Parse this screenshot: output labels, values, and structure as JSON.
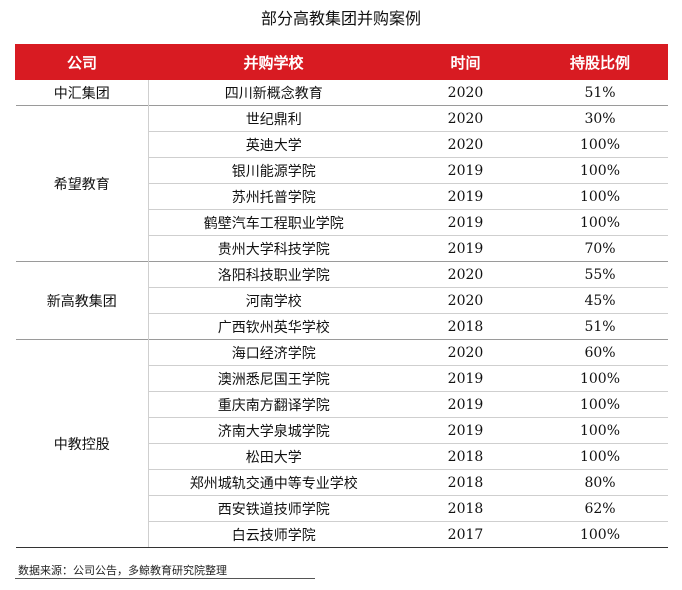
{
  "title": "部分高教集团并购案例",
  "headers": [
    "公司",
    "并购学校",
    "时间",
    "持股比例"
  ],
  "groups": [
    {
      "company": "中汇集团",
      "rows": [
        {
          "school": "四川新概念教育",
          "year": "2020",
          "share": "51%"
        }
      ]
    },
    {
      "company": "希望教育",
      "rows": [
        {
          "school": "世纪鼎利",
          "year": "2020",
          "share": "30%"
        },
        {
          "school": "英迪大学",
          "year": "2020",
          "share": "100%"
        },
        {
          "school": "银川能源学院",
          "year": "2019",
          "share": "100%"
        },
        {
          "school": "苏州托普学院",
          "year": "2019",
          "share": "100%"
        },
        {
          "school": "鹤壁汽车工程职业学院",
          "year": "2019",
          "share": "100%"
        },
        {
          "school": "贵州大学科技学院",
          "year": "2019",
          "share": "70%"
        }
      ]
    },
    {
      "company": "新高教集团",
      "rows": [
        {
          "school": "洛阳科技职业学院",
          "year": "2020",
          "share": "55%"
        },
        {
          "school": "河南学校",
          "year": "2020",
          "share": "45%"
        },
        {
          "school": "广西钦州英华学校",
          "year": "2018",
          "share": "51%"
        }
      ]
    },
    {
      "company": "中教控股",
      "rows": [
        {
          "school": "海口经济学院",
          "year": "2020",
          "share": "60%"
        },
        {
          "school": "澳洲悉尼国王学院",
          "year": "2019",
          "share": "100%"
        },
        {
          "school": "重庆南方翻译学院",
          "year": "2019",
          "share": "100%"
        },
        {
          "school": "济南大学泉城学院",
          "year": "2019",
          "share": "100%"
        },
        {
          "school": "松田大学",
          "year": "2018",
          "share": "100%"
        },
        {
          "school": "郑州城轨交通中等专业学校",
          "year": "2018",
          "share": "80%"
        },
        {
          "school": "西安铁道技师学院",
          "year": "2018",
          "share": "62%"
        },
        {
          "school": "白云技师学院",
          "year": "2017",
          "share": "100%"
        }
      ]
    }
  ],
  "source": "数据来源：公司公告，多鲸教育研究院整理"
}
